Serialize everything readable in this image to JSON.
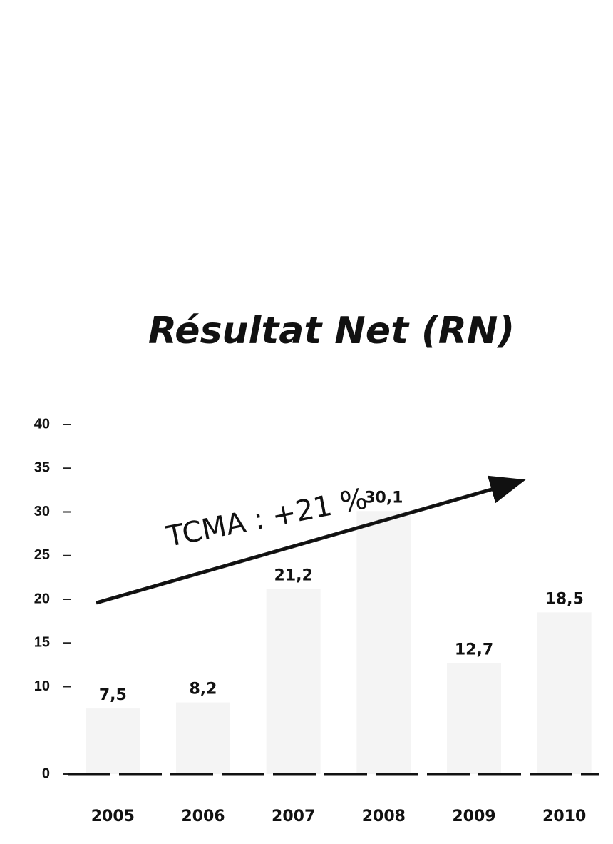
{
  "chart_data": {
    "type": "bar",
    "title": "Résultat Net  (RN)",
    "annotation": "TCMA : +21 %",
    "categories": [
      "2005",
      "2006",
      "2007",
      "2008",
      "2009",
      "2010"
    ],
    "values": [
      7.5,
      8.2,
      21.2,
      30.1,
      12.7,
      18.5
    ],
    "value_labels": [
      "7,5",
      "8,2",
      "21,2",
      "30,1",
      "12,7",
      "18,5"
    ],
    "color": "#f4f4f4",
    "ylim": [
      0,
      40
    ],
    "yticks": [
      0,
      10,
      15,
      20,
      25,
      30,
      35,
      40
    ],
    "grid": false
  }
}
